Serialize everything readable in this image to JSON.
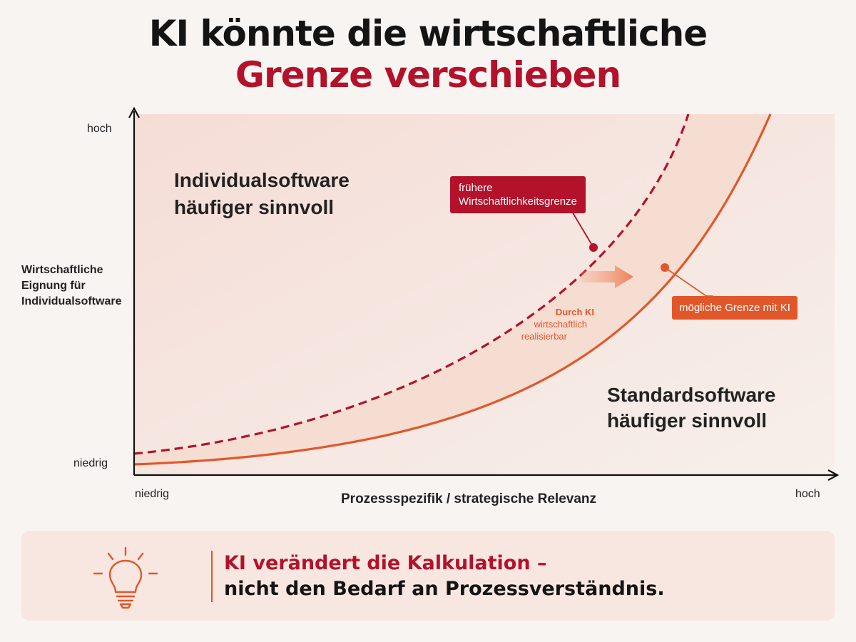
{
  "title": {
    "line1": "KI könnte die wirtschaftliche",
    "line2": "Grenze verschieben"
  },
  "y_axis": {
    "label_lines": [
      "Wirtschaftliche",
      "Eignung für",
      "Individualsoftware"
    ],
    "high": "hoch",
    "low": "niedrig"
  },
  "x_axis": {
    "label": "Prozessspezifik / strategische Relevanz",
    "low": "niedrig",
    "high": "hoch"
  },
  "regions": {
    "upper_lines": [
      "Individualsoftware",
      "häufiger sinnvoll"
    ],
    "lower_lines": [
      "Standardsoftware",
      "häufiger sinnvoll"
    ]
  },
  "callouts": {
    "previous_lines": [
      "frühere",
      "Wirtschaftlichkeitsgrenze"
    ],
    "ki": "mögliche Grenze mit KI"
  },
  "band_label": {
    "line1": "Durch KI",
    "line2": "wirtschaftlich",
    "line3": "realisierbar"
  },
  "banner": {
    "line1": "KI verändert die Kalkulation –",
    "line2": "nicht den Bedarf an Prozessverständnis."
  },
  "colors": {
    "title_dark": "#141414",
    "accent_red": "#b3122a",
    "accent_orange": "#e2572a",
    "band_fill": "#f6dccf",
    "background": "#f8f4f2"
  },
  "icons": {
    "banner_icon": "lightbulb-icon"
  }
}
